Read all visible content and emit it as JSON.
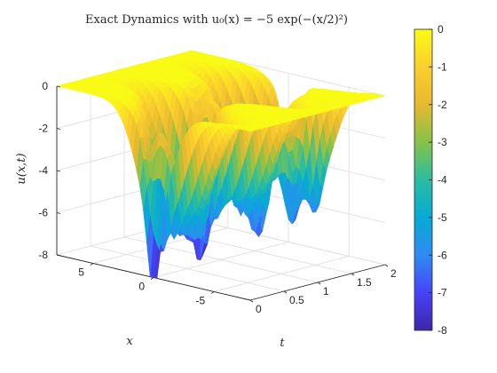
{
  "chart_data": {
    "type": "surface",
    "title": "Exact Dynamics with u₀(x) = −5 exp(−(x/2)²)",
    "xlabel": "x",
    "tlabel": "t",
    "zlabel": "u(x,t)",
    "x_range": [
      -8,
      8
    ],
    "t_range": [
      0,
      2
    ],
    "z_range": [
      -8,
      0
    ],
    "x_ticks": [
      "-5",
      "0",
      "5"
    ],
    "x_tick_values": [
      -5,
      0,
      5
    ],
    "t_ticks": [
      "0",
      "0.5",
      "1",
      "1.5",
      "2"
    ],
    "t_tick_values": [
      0,
      0.5,
      1,
      1.5,
      2
    ],
    "z_ticks": [
      "-8",
      "-6",
      "-4",
      "-2",
      "0"
    ],
    "z_tick_values": [
      -8,
      -6,
      -4,
      -2,
      0
    ],
    "colorbar": {
      "ticks": [
        "0",
        "-1",
        "-2",
        "-3",
        "-4",
        "-5",
        "-6",
        "-7",
        "-8"
      ],
      "tick_values": [
        0,
        -1,
        -2,
        -3,
        -4,
        -5,
        -6,
        -7,
        -8
      ],
      "colormap": "parula",
      "colors": [
        "#3e26a8",
        "#4743f8",
        "#2e8cf2",
        "#06aad5",
        "#2bbca0",
        "#85c249",
        "#e6b92e",
        "#fbcf2e",
        "#f9fb15"
      ]
    },
    "grid": true
  }
}
